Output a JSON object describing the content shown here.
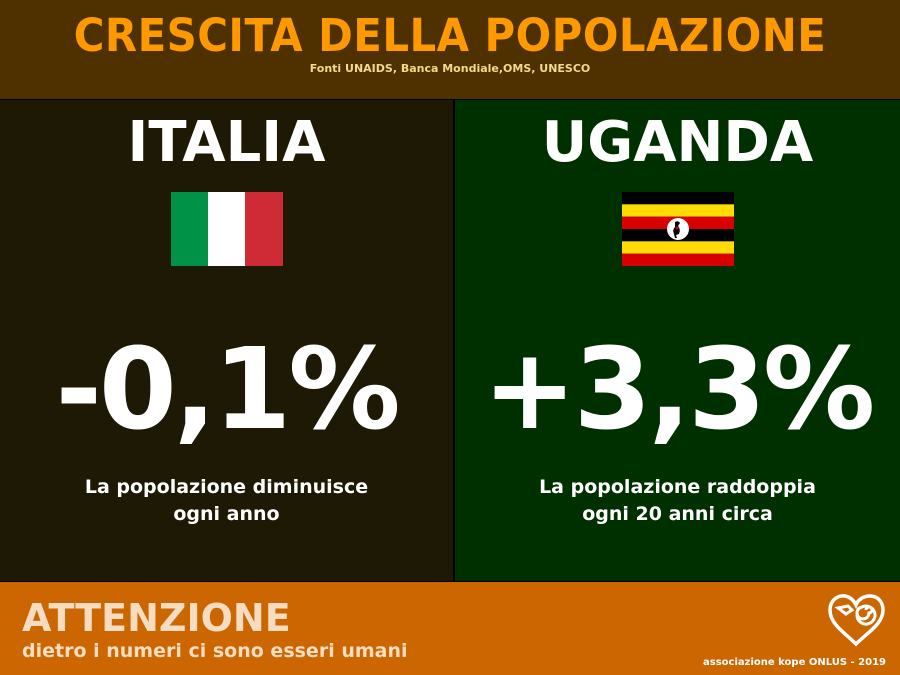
{
  "header": {
    "title": "CRESCITA DELLA POPOLAZIONE",
    "sources": "Fonti UNAIDS, Banca Mondiale,OMS, UNESCO"
  },
  "italia": {
    "country": "ITALIA",
    "rate": "-0,1%",
    "description_line1": "La popolazione diminuisce",
    "description_line2": "ogni anno",
    "flag_colors": [
      "#009246",
      "#ffffff",
      "#ce2b37"
    ]
  },
  "uganda": {
    "country": "UGANDA",
    "rate": "+3,3%",
    "description_line1": "La popolazione raddoppia",
    "description_line2": "ogni 20 anni circa",
    "flag_colors": [
      "#000000",
      "#fcdc04",
      "#d90000"
    ]
  },
  "footer": {
    "headline": "ATTENZIONE",
    "subline": "dietro i numeri ci sono esseri umani",
    "credit": "associazione kope ONLUS - 2019",
    "logo_icon": "heart-spiral-icon"
  },
  "colors": {
    "header_bg": "#4f3100",
    "title": "#ff9900",
    "left_bg": "#1e1905",
    "right_bg": "#003000",
    "footer_bg": "#cc6600"
  }
}
